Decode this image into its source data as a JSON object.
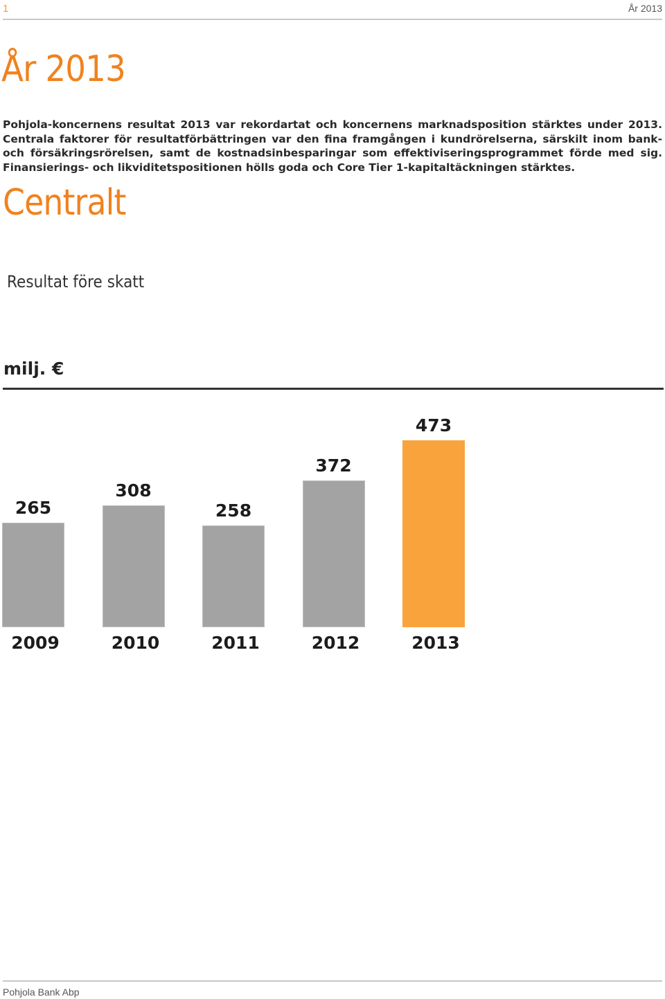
{
  "header": {
    "page_number": "1",
    "right_text": "År 2013"
  },
  "title": "År 2013",
  "intro": "Pohjola-koncernens resultat 2013 var rekordartat och koncernens marknadsposition stärktes under 2013. Centrala faktorer för resultatförbättringen var den fina framgången i kundrörelserna, särskilt inom bank- och försäkringsrörelsen, samt de kostnadsinbesparingar som effektiviseringsprogrammet förde med sig. Finansierings- och likviditetspositionen hölls goda och Core Tier 1-kapitaltäckningen stärktes.",
  "section_title": "Centralt",
  "chart_data": {
    "type": "bar",
    "title": "Resultat före skatt",
    "ylabel": "milj. €",
    "categories": [
      "2009",
      "2010",
      "2011",
      "2012",
      "2013"
    ],
    "values": [
      265,
      308,
      258,
      372,
      473
    ],
    "value_labels": [
      "265",
      "308",
      "258",
      "372",
      "473"
    ],
    "highlight_index": 4,
    "colors": {
      "bar": "#a3a3a3",
      "highlight": "#f9a33d"
    },
    "ylim": [
      0,
      473
    ]
  },
  "footer": {
    "company": "Pohjola Bank Abp"
  }
}
